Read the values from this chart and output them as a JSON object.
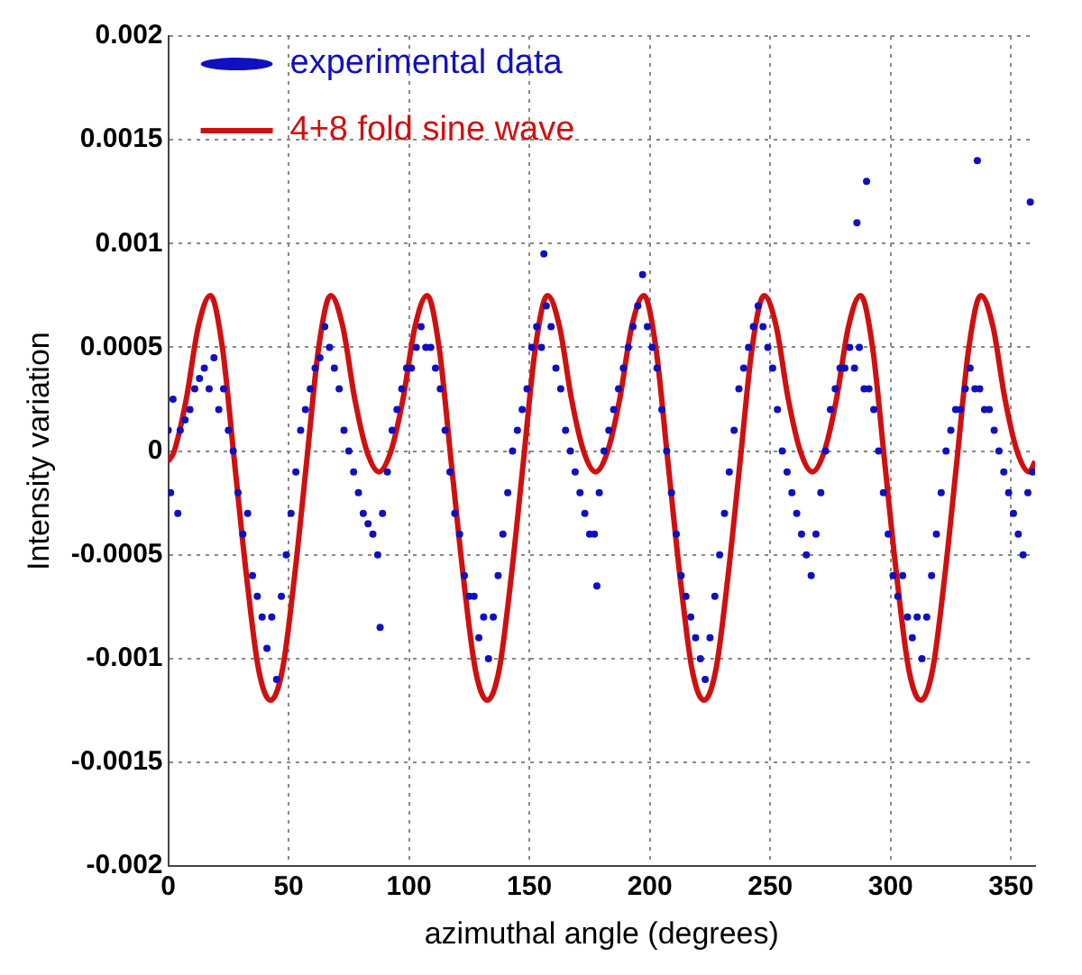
{
  "chart_data": {
    "type": "scatter",
    "xlabel": "azimuthal angle (degrees)",
    "ylabel": "Intensity variation",
    "xlim": [
      0,
      360
    ],
    "xticks": [
      0,
      50,
      100,
      150,
      200,
      250,
      300,
      350
    ],
    "ylim": [
      -0.002,
      0.002
    ],
    "yticks": [
      -0.002,
      -0.0015,
      -0.001,
      -0.0005,
      0,
      0.0005,
      0.001,
      0.0015,
      0.002
    ],
    "grid": true,
    "legend": "top left",
    "marker": "circle",
    "series": [
      {
        "name": "experimental data",
        "type": "scatter",
        "color": "#1010c0",
        "x": [
          0,
          1,
          2,
          4,
          5,
          7,
          9,
          11,
          13,
          15,
          17,
          19,
          21,
          23,
          25,
          27,
          29,
          31,
          33,
          35,
          37,
          39,
          41,
          43,
          45,
          47,
          49,
          51,
          53,
          55,
          57,
          59,
          61,
          63,
          65,
          67,
          69,
          71,
          73,
          75,
          77,
          79,
          81,
          83,
          85,
          87,
          88,
          89,
          91,
          93,
          95,
          97,
          99,
          101,
          103,
          105,
          107,
          109,
          111,
          113,
          115,
          117,
          119,
          121,
          123,
          125,
          127,
          129,
          131,
          133,
          135,
          137,
          139,
          141,
          143,
          145,
          147,
          149,
          151,
          153,
          155,
          156,
          157,
          159,
          161,
          163,
          165,
          167,
          169,
          171,
          173,
          175,
          177,
          178,
          179,
          181,
          183,
          185,
          187,
          189,
          191,
          193,
          195,
          197,
          199,
          201,
          203,
          205,
          207,
          209,
          211,
          213,
          215,
          217,
          219,
          221,
          223,
          225,
          227,
          229,
          231,
          233,
          235,
          237,
          239,
          241,
          243,
          245,
          247,
          249,
          251,
          253,
          255,
          257,
          259,
          261,
          263,
          265,
          267,
          269,
          271,
          273,
          275,
          277,
          279,
          281,
          283,
          285,
          286,
          287,
          289,
          290,
          291,
          293,
          295,
          297,
          299,
          301,
          303,
          305,
          307,
          309,
          311,
          313,
          315,
          317,
          319,
          321,
          323,
          325,
          327,
          329,
          331,
          333,
          335,
          336,
          337,
          339,
          341,
          343,
          345,
          347,
          349,
          351,
          353,
          355,
          357,
          358,
          359
        ],
        "values": [
          0.0001,
          -0.0002,
          0.00025,
          -0.0003,
          0.0001,
          0.00015,
          0.0002,
          0.0003,
          0.00035,
          0.0004,
          0.0003,
          0.00045,
          0.0002,
          0.0003,
          0.0001,
          0,
          -0.0002,
          -0.0004,
          -0.0003,
          -0.0006,
          -0.0007,
          -0.0008,
          -0.00095,
          -0.0008,
          -0.0011,
          -0.0007,
          -0.0005,
          -0.0003,
          -0.0001,
          0.0001,
          0.0002,
          0.0003,
          0.0004,
          0.00045,
          0.0006,
          0.0005,
          0.0004,
          0.0003,
          0.0001,
          0,
          -0.0001,
          -0.0002,
          -0.0003,
          -0.00035,
          -0.0004,
          -0.0005,
          -0.00085,
          -0.0003,
          -0.0001,
          0.0001,
          0.0002,
          0.0003,
          0.0004,
          0.0004,
          0.0005,
          0.0006,
          0.0005,
          0.0005,
          0.0004,
          0.0003,
          0.0001,
          -0.0001,
          -0.0003,
          -0.0004,
          -0.0006,
          -0.0007,
          -0.0007,
          -0.0009,
          -0.0008,
          -0.001,
          -0.0008,
          -0.0006,
          -0.0004,
          -0.0002,
          0,
          0.0001,
          0.0002,
          0.0003,
          0.0005,
          0.0006,
          0.0005,
          0.00095,
          0.0007,
          0.0006,
          0.0004,
          0.0003,
          0.0001,
          0,
          -0.0001,
          -0.0002,
          -0.0003,
          -0.0004,
          -0.0004,
          -0.00065,
          -0.0002,
          0,
          0.0001,
          0.0002,
          0.0003,
          0.0004,
          0.0005,
          0.0006,
          0.0007,
          0.00085,
          0.0006,
          0.0005,
          0.0004,
          0.0002,
          0,
          -0.0002,
          -0.0004,
          -0.0006,
          -0.0007,
          -0.0008,
          -0.0009,
          -0.001,
          -0.0011,
          -0.0009,
          -0.0007,
          -0.0005,
          -0.0003,
          -0.0001,
          0.0001,
          0.0003,
          0.0004,
          0.0005,
          0.0006,
          0.0007,
          0.0006,
          0.0005,
          0.0004,
          0.0002,
          0,
          -0.0001,
          -0.0002,
          -0.0003,
          -0.0004,
          -0.0005,
          -0.0006,
          -0.0004,
          -0.0002,
          0,
          0.0002,
          0.0003,
          0.0004,
          0.0004,
          0.0005,
          0.0004,
          0.0011,
          0.0005,
          0.0003,
          0.0013,
          0.0003,
          0.0002,
          0,
          -0.0002,
          -0.0004,
          -0.0006,
          -0.0007,
          -0.0006,
          -0.0008,
          -0.0009,
          -0.0008,
          -0.001,
          -0.0008,
          -0.0006,
          -0.0004,
          -0.0002,
          0,
          0.0001,
          0.0002,
          0.0002,
          0.0003,
          0.0004,
          0.0003,
          0.0014,
          0.0003,
          0.0002,
          0.0002,
          0.0001,
          0,
          -0.0001,
          -0.0002,
          -0.0003,
          -0.0004,
          -0.0005,
          -0.0002,
          0.0012,
          -0.0001
        ]
      },
      {
        "name": "4+8 fold sine wave",
        "type": "line",
        "color": "#d01010",
        "marker": "none",
        "x": [
          0,
          2.5,
          7.5,
          12.5,
          17.5,
          22.5,
          27.5,
          32.5,
          37.5,
          42.5,
          47.5,
          52.5,
          57.5,
          62.5,
          67.5,
          72.5,
          77.5,
          82.5,
          87.5,
          92.5,
          97.5,
          102.5,
          107.5,
          112.5,
          117.5,
          122.5,
          127.5,
          132.5,
          137.5,
          142.5,
          147.5,
          152.5,
          157.5,
          162.5,
          167.5,
          172.5,
          177.5,
          182.5,
          187.5,
          192.5,
          197.5,
          202.5,
          207.5,
          212.5,
          217.5,
          222.5,
          227.5,
          232.5,
          237.5,
          242.5,
          247.5,
          252.5,
          257.5,
          262.5,
          267.5,
          272.5,
          277.5,
          282.5,
          287.5,
          292.5,
          297.5,
          302.5,
          307.5,
          312.5,
          317.5,
          322.5,
          327.5,
          332.5,
          337.5,
          342.5,
          347.5,
          352.5,
          357.5,
          360
        ],
        "values": [
          -5e-05,
          0,
          0.00025,
          0.0006,
          0.00075,
          0.0005,
          -5e-05,
          -0.0006,
          -0.00105,
          -0.0012,
          -0.00105,
          -0.0006,
          -5e-05,
          0.0005,
          0.00075,
          0.0006,
          0.00025,
          0,
          -0.0001,
          0,
          0.00025,
          0.0006,
          0.00075,
          0.0005,
          -5e-05,
          -0.0006,
          -0.00105,
          -0.0012,
          -0.00105,
          -0.0006,
          -5e-05,
          0.0005,
          0.00075,
          0.0006,
          0.00025,
          0,
          -0.0001,
          0,
          0.00025,
          0.0006,
          0.00075,
          0.0005,
          -5e-05,
          -0.0006,
          -0.00105,
          -0.0012,
          -0.00105,
          -0.0006,
          -5e-05,
          0.0005,
          0.00075,
          0.0006,
          0.00025,
          0,
          -0.0001,
          0,
          0.00025,
          0.0006,
          0.00075,
          0.0005,
          -5e-05,
          -0.0006,
          -0.00105,
          -0.0012,
          -0.00105,
          -0.0006,
          -5e-05,
          0.0005,
          0.00075,
          0.0006,
          0.00025,
          0,
          -0.0001,
          -5e-05
        ]
      }
    ]
  }
}
